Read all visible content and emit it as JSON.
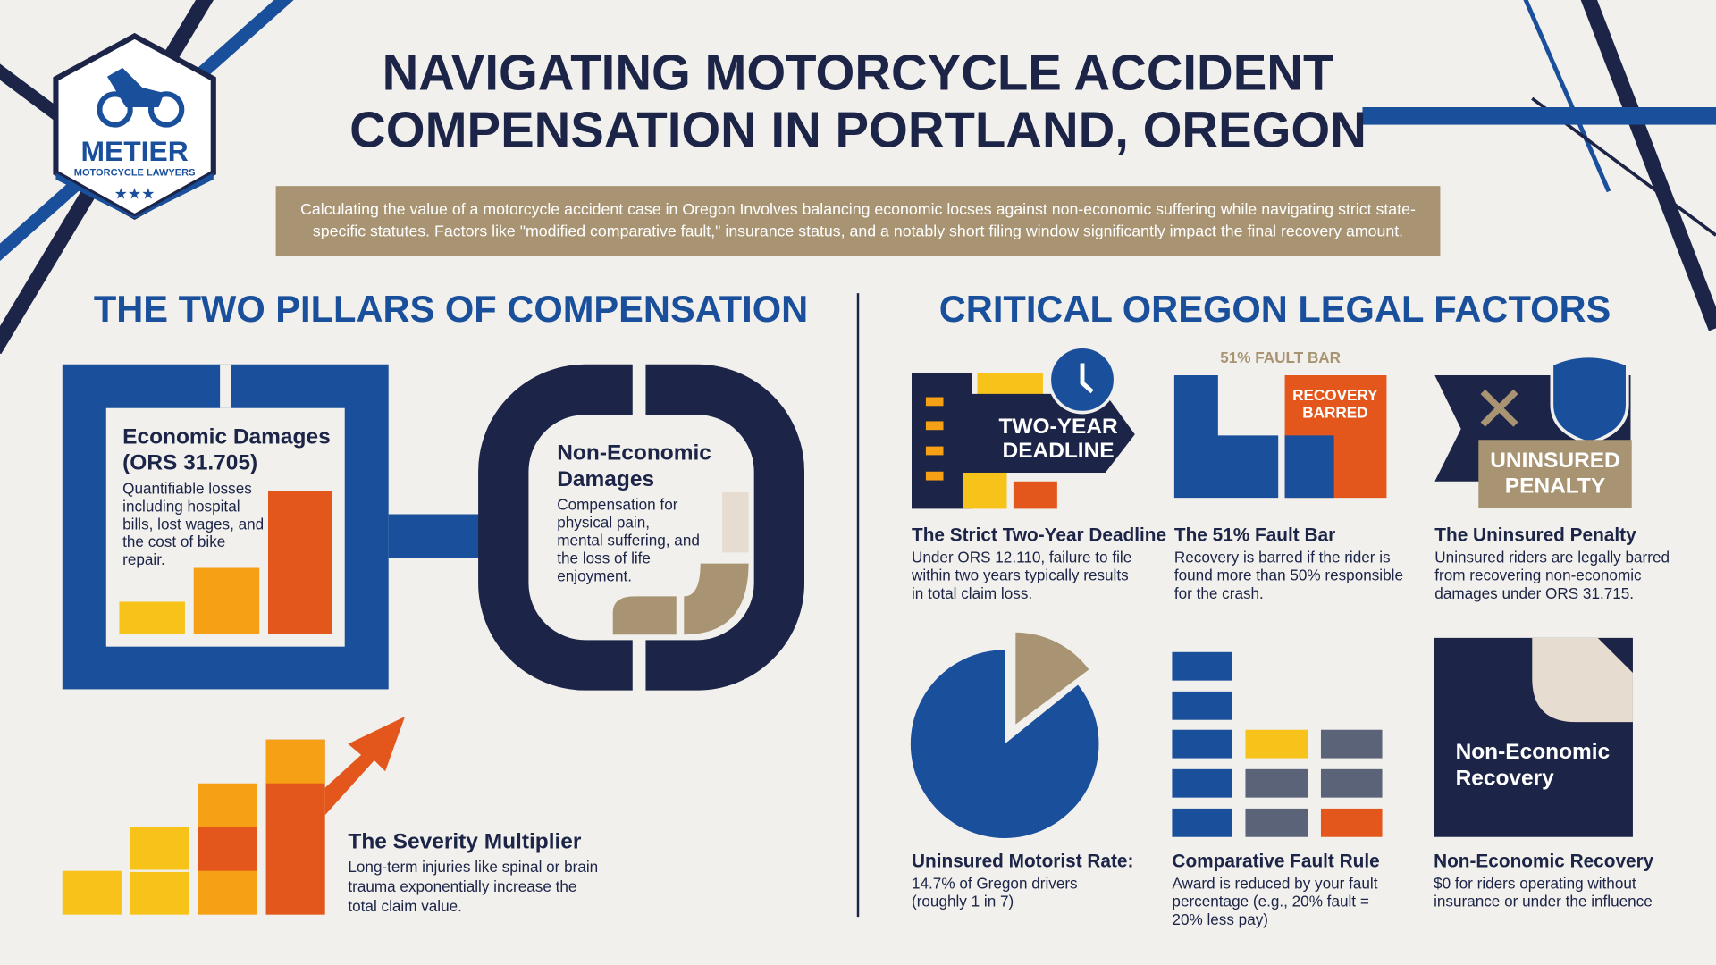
{
  "logo": {
    "name": "METIER",
    "subtitle": "MOTORCYCLE LAWYERS"
  },
  "title": [
    "NAVIGATING MOTORCYCLE ACCIDENT",
    "COMPENSATION IN PORTLAND, OREGON"
  ],
  "intro": [
    "Calculating the value of a motorcycle accident case in Oregon Involves balancing economic locses against non-economic suffering while navigating strict state-",
    "specific statutes. Factors like \"modified comparative fault,\" insurance status, and a notably short filing window significantly impact the final recovery amount."
  ],
  "left": {
    "heading": "THE TWO PILLARS OF COMPENSATION",
    "economic": {
      "title": [
        "Economic Damages",
        "(ORS 31.705)"
      ],
      "text": [
        "Quantifiable losses",
        "including hospital",
        "bills, lost wages, and",
        "the cost of bike",
        "repair."
      ]
    },
    "non_economic": {
      "title": [
        "Non-Economic",
        "Damages"
      ],
      "text": [
        "Compensation for",
        "physical pain,",
        "mental suffering, and",
        "the loss of life",
        "enjoyment."
      ]
    },
    "severity": {
      "title": "The Severity Multiplier",
      "text": [
        "Long-term injuries like spinal or brain",
        "trauma exponentially increase the",
        "total claim value."
      ]
    }
  },
  "right": {
    "heading": "CRITICAL OREGON LEGAL FACTORS",
    "cards": [
      {
        "badge": [
          "TWO-YEAR",
          "DEADLINE"
        ],
        "title": "The Strict Two-Year Deadline",
        "text": [
          "Under ORS 12.110, failure to file",
          "within two years typically results",
          "in total claim loss."
        ]
      },
      {
        "caption": "51% FAULT BAR",
        "badge": [
          "RECOVERY",
          "BARRED"
        ],
        "title": "The 51% Fault Bar",
        "text": [
          "Recovery is barred if the rider is",
          "found more than 50% responsible",
          "for the crash."
        ]
      },
      {
        "badge": [
          "UNINSURED",
          "PENALTY"
        ],
        "title": "The Uninsured Penalty",
        "text": [
          "Uninsured riders are legally barred",
          "from recovering non-economic",
          "damages under ORS 31.715."
        ]
      },
      {
        "title": "Uninsured Motorist Rate:",
        "text": [
          "14.7% of Gregon drivers",
          "(roughly 1 in 7)"
        ]
      },
      {
        "title": "Comparative Fault Rule",
        "text": [
          "Award is reduced by your fault",
          "percentage (e.g., 20% fault =",
          "20% less pay)"
        ]
      },
      {
        "badge": [
          "Non-Economic",
          "Recovery"
        ],
        "title": "Non-Economic Recovery",
        "text": [
          "$0 for riders operating without",
          "insurance or under the influence"
        ]
      }
    ]
  }
}
